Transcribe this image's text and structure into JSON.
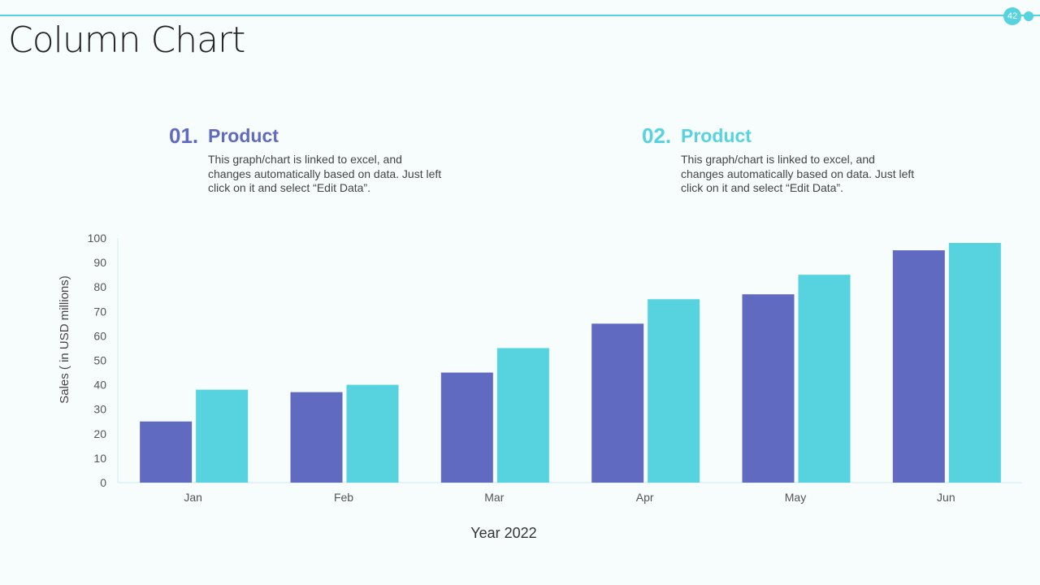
{
  "page": {
    "title": "Column Chart",
    "page_number": "42"
  },
  "products": [
    {
      "number": "01.",
      "name": "Product",
      "color": "#606ac0",
      "description": "This graph/chart is linked to excel, and changes automatically based on data. Just left click on it and select “Edit Data”."
    },
    {
      "number": "02.",
      "name": "Product",
      "color": "#56d3de",
      "description": "This graph/chart is linked to excel, and changes automatically based on data. Just left click on it and select “Edit Data”."
    }
  ],
  "chart_data": {
    "type": "bar",
    "title": "",
    "xlabel": "Year 2022",
    "ylabel": "Sales  ( in USD millions)",
    "categories": [
      "Jan",
      "Feb",
      "Mar",
      "Apr",
      "May",
      "Jun"
    ],
    "series": [
      {
        "name": "Product 01",
        "color": "#606ac0",
        "values": [
          25,
          37,
          45,
          65,
          77,
          95
        ]
      },
      {
        "name": "Product 02",
        "color": "#56d3de",
        "values": [
          38,
          40,
          55,
          75,
          85,
          98
        ]
      }
    ],
    "ylim": [
      0,
      100
    ],
    "yticks": [
      0,
      10,
      20,
      30,
      40,
      50,
      60,
      70,
      80,
      90,
      100
    ],
    "grid": false,
    "legend": "none"
  }
}
